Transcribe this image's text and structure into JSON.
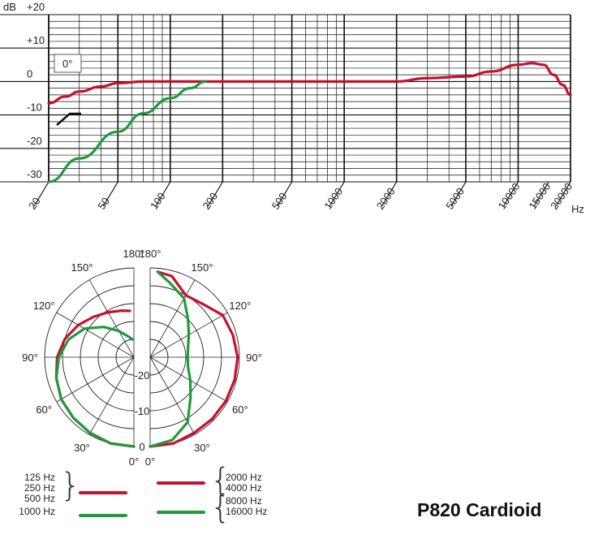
{
  "colors": {
    "red": "#c8102e",
    "green": "#1f9a3c",
    "grid": "#111111"
  },
  "chart_data": [
    {
      "type": "line",
      "xscale": "log",
      "xlim": [
        20,
        20000
      ],
      "ylim": [
        -30,
        20
      ],
      "grid": true,
      "xlabel": "Hz",
      "ylabel": "dB",
      "y_ticks": [
        "+20",
        "+10",
        "0",
        "-10",
        "-20",
        "-30"
      ],
      "x_ticks": [
        "20",
        "50",
        "100",
        "200",
        "500",
        "1000",
        "2000",
        "5000",
        "10000",
        "15000",
        "20000"
      ],
      "annotation": "0°",
      "series": [
        {
          "color": "#c8102e",
          "x": [
            20,
            25,
            30,
            40,
            50,
            70,
            100,
            200,
            500,
            1000,
            2000,
            3000,
            5000,
            7000,
            10000,
            12000,
            14000,
            16000,
            18000,
            20000
          ],
          "y": [
            -6.5,
            -4.5,
            -3,
            -1.5,
            -0.5,
            0,
            0,
            0,
            0,
            0,
            0,
            1,
            1.5,
            3,
            5,
            5.5,
            5,
            2,
            -1,
            -4
          ]
        },
        {
          "color": "#1f9a3c",
          "x": [
            20,
            30,
            50,
            70,
            100,
            130,
            160
          ],
          "y": [
            -30,
            -23,
            -15,
            -9.5,
            -5,
            -2,
            0
          ]
        }
      ]
    },
    {
      "type": "polar",
      "angle_labels": [
        "180°",
        "150°",
        "120°",
        "90°",
        "60°",
        "30°",
        "0°"
      ],
      "radial_labels": [
        "-20",
        "-10",
        "0"
      ],
      "series_left": [
        {
          "color": "#c8102e",
          "angles": [
            0,
            15,
            30,
            45,
            60,
            75,
            90,
            105,
            120,
            135,
            150,
            165,
            175
          ],
          "db": [
            0,
            0,
            -0.5,
            -1,
            -1.5,
            -2.5,
            -3.5,
            -5,
            -7,
            -9,
            -10.5,
            -11.5,
            -12
          ]
        },
        {
          "color": "#1f9a3c",
          "angles": [
            0,
            15,
            30,
            45,
            60,
            75,
            90,
            105,
            120,
            135,
            150,
            165,
            175
          ],
          "db": [
            0,
            0,
            -0.5,
            -1,
            -1.5,
            -2.5,
            -4,
            -6,
            -9,
            -13,
            -16.5,
            -19,
            -20
          ]
        }
      ],
      "series_right": [
        {
          "color": "#c8102e",
          "angles": [
            0,
            15,
            30,
            45,
            60,
            75,
            90,
            105,
            120,
            135,
            150,
            165,
            175
          ],
          "db": [
            0,
            0,
            -0.5,
            -0.5,
            -0.5,
            -0.5,
            -0.5,
            -1,
            -1.5,
            -4,
            -5,
            -1.5,
            -1
          ]
        },
        {
          "color": "#1f9a3c",
          "angles": [
            0,
            15,
            30,
            45,
            60,
            75,
            90,
            105,
            120,
            135,
            150,
            165,
            175
          ],
          "db": [
            0,
            -1,
            -4,
            -9,
            -12,
            -14,
            -14.5,
            -14,
            -12.5,
            -10,
            -6,
            -3.5,
            -1
          ]
        }
      ]
    }
  ],
  "legend": {
    "left_red": "125 Hz\n250 Hz\n500 Hz",
    "left_green": "1000 Hz",
    "right_red": "2000 Hz\n4000 Hz",
    "right_green": "8000 Hz\n16000 Hz"
  },
  "product_title": "P820 Cardioid"
}
